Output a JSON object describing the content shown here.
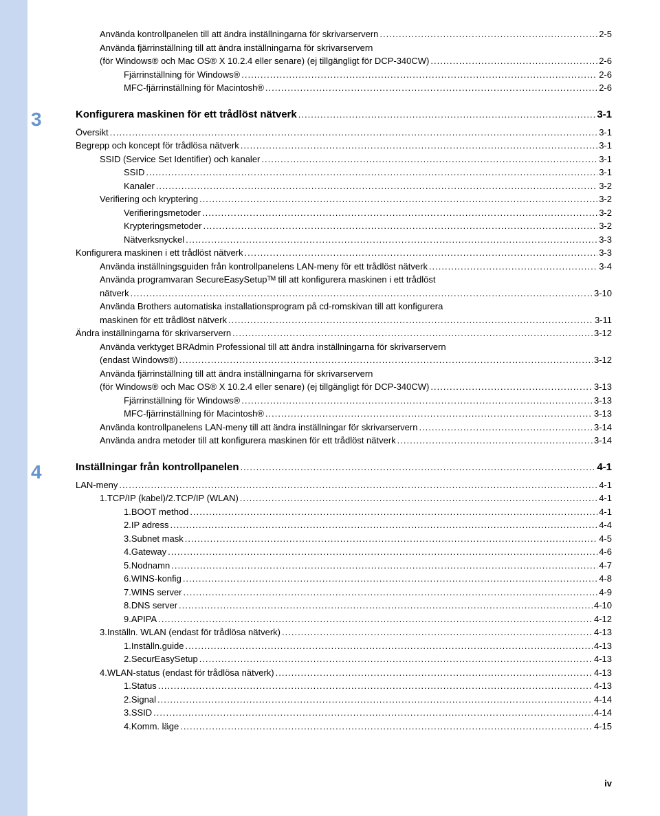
{
  "top": [
    {
      "i": 1,
      "t": "Använda kontrollpanelen till att ändra inställningarna för skrivarservern",
      "p": "2-5"
    },
    {
      "i": 1,
      "t": "Använda fjärrinställning till att ändra inställningarna för skrivarservern",
      "p": "",
      "nodots": true
    },
    {
      "i": 1,
      "t": "(för Windows® och Mac OS® X 10.2.4 eller senare) (ej tillgängligt för DCP-340CW)",
      "p": "2-6"
    },
    {
      "i": 2,
      "t": "Fjärrinställning för Windows®",
      "p": "2-6"
    },
    {
      "i": 2,
      "t": "MFC-fjärrinställning för Macintosh®",
      "p": "2-6"
    }
  ],
  "sec3": {
    "num": "3",
    "title": "Konfigurera maskinen för ett trådlöst nätverk",
    "p": "3-1"
  },
  "s3": [
    {
      "i": 0,
      "t": "Översikt",
      "p": "3-1"
    },
    {
      "i": 0,
      "t": "Begrepp och koncept för trådlösa nätverk",
      "p": "3-1"
    },
    {
      "i": 1,
      "t": "SSID (Service Set Identifier) och kanaler",
      "p": "3-1"
    },
    {
      "i": 2,
      "t": "SSID",
      "p": "3-1"
    },
    {
      "i": 2,
      "t": "Kanaler",
      "p": "3-2"
    },
    {
      "i": 1,
      "t": "Verifiering och kryptering",
      "p": "3-2"
    },
    {
      "i": 2,
      "t": "Verifieringsmetoder",
      "p": "3-2"
    },
    {
      "i": 2,
      "t": "Krypteringsmetoder",
      "p": "3-2"
    },
    {
      "i": 2,
      "t": "Nätverksnyckel",
      "p": "3-3"
    },
    {
      "i": 0,
      "t": "Konfigurera maskinen i ett trådlöst nätverk",
      "p": "3-3"
    },
    {
      "i": 1,
      "t": "Använda inställningsguiden från kontrollpanelens LAN-meny för ett trådlöst nätverk",
      "p": "3-4"
    },
    {
      "i": 1,
      "t": "Använda programvaran SecureEasySetupᵀᴹ till att konfigurera maskinen i ett trådlöst",
      "p": "",
      "nodots": true
    },
    {
      "i": 1,
      "t": "nätverk",
      "p": "3-10"
    },
    {
      "i": 1,
      "t": "Använda Brothers automatiska installationsprogram på cd-romskivan till att konfigurera",
      "p": "",
      "nodots": true
    },
    {
      "i": 1,
      "t": "maskinen för ett trådlöst nätverk",
      "p": "3-11"
    },
    {
      "i": 0,
      "t": "Ändra inställningarna för skrivarservern",
      "p": "3-12"
    },
    {
      "i": 1,
      "t": "Använda verktyget BRAdmin Professional till att ändra inställningarna för skrivarservern",
      "p": "",
      "nodots": true
    },
    {
      "i": 1,
      "t": "(endast Windows®)",
      "p": "3-12"
    },
    {
      "i": 1,
      "t": "Använda fjärrinställning till att ändra inställningarna för skrivarservern",
      "p": "",
      "nodots": true
    },
    {
      "i": 1,
      "t": "(för Windows® och Mac OS® X 10.2.4 eller senare) (ej tillgängligt för DCP-340CW)",
      "p": "3-13"
    },
    {
      "i": 2,
      "t": "Fjärrinställning för Windows®",
      "p": "3-13"
    },
    {
      "i": 2,
      "t": "MFC-fjärrinställning för Macintosh®",
      "p": "3-13"
    },
    {
      "i": 1,
      "t": "Använda kontrollpanelens LAN-meny till att ändra inställningar för skrivarservern",
      "p": "3-14"
    },
    {
      "i": 1,
      "t": "Använda andra metoder till att konfigurera maskinen för ett trådlöst nätverk",
      "p": "3-14"
    }
  ],
  "sec4": {
    "num": "4",
    "title": "Inställningar från kontrollpanelen",
    "p": "4-1"
  },
  "s4": [
    {
      "i": 0,
      "t": "LAN-meny",
      "p": "4-1"
    },
    {
      "i": 1,
      "t": "1.TCP/IP (kabel)/2.TCP/IP (WLAN)",
      "p": "4-1"
    },
    {
      "i": 2,
      "t": "1.BOOT method",
      "p": "4-1"
    },
    {
      "i": 2,
      "t": "2.IP adress",
      "p": "4-4"
    },
    {
      "i": 2,
      "t": "3.Subnet mask",
      "p": "4-5"
    },
    {
      "i": 2,
      "t": "4.Gateway",
      "p": "4-6"
    },
    {
      "i": 2,
      "t": "5.Nodnamn",
      "p": "4-7"
    },
    {
      "i": 2,
      "t": "6.WINS-konfig",
      "p": "4-8"
    },
    {
      "i": 2,
      "t": "7.WINS server",
      "p": "4-9"
    },
    {
      "i": 2,
      "t": "8.DNS server",
      "p": "4-10"
    },
    {
      "i": 2,
      "t": "9.APIPA",
      "p": "4-12"
    },
    {
      "i": 1,
      "t": "3.Inställn. WLAN (endast för trådlösa nätverk)",
      "p": "4-13"
    },
    {
      "i": 2,
      "t": "1.Inställn.guide",
      "p": "4-13"
    },
    {
      "i": 2,
      "t": "2.SecurEasySetup",
      "p": "4-13"
    },
    {
      "i": 1,
      "t": "4.WLAN-status (endast för trådlösa nätverk)",
      "p": "4-13"
    },
    {
      "i": 2,
      "t": "1.Status",
      "p": "4-13"
    },
    {
      "i": 2,
      "t": "2.Signal",
      "p": "4-14"
    },
    {
      "i": 2,
      "t": "3.SSID",
      "p": "4-14"
    },
    {
      "i": 2,
      "t": "4.Komm. läge",
      "p": "4-15"
    }
  ],
  "footer": "iv"
}
